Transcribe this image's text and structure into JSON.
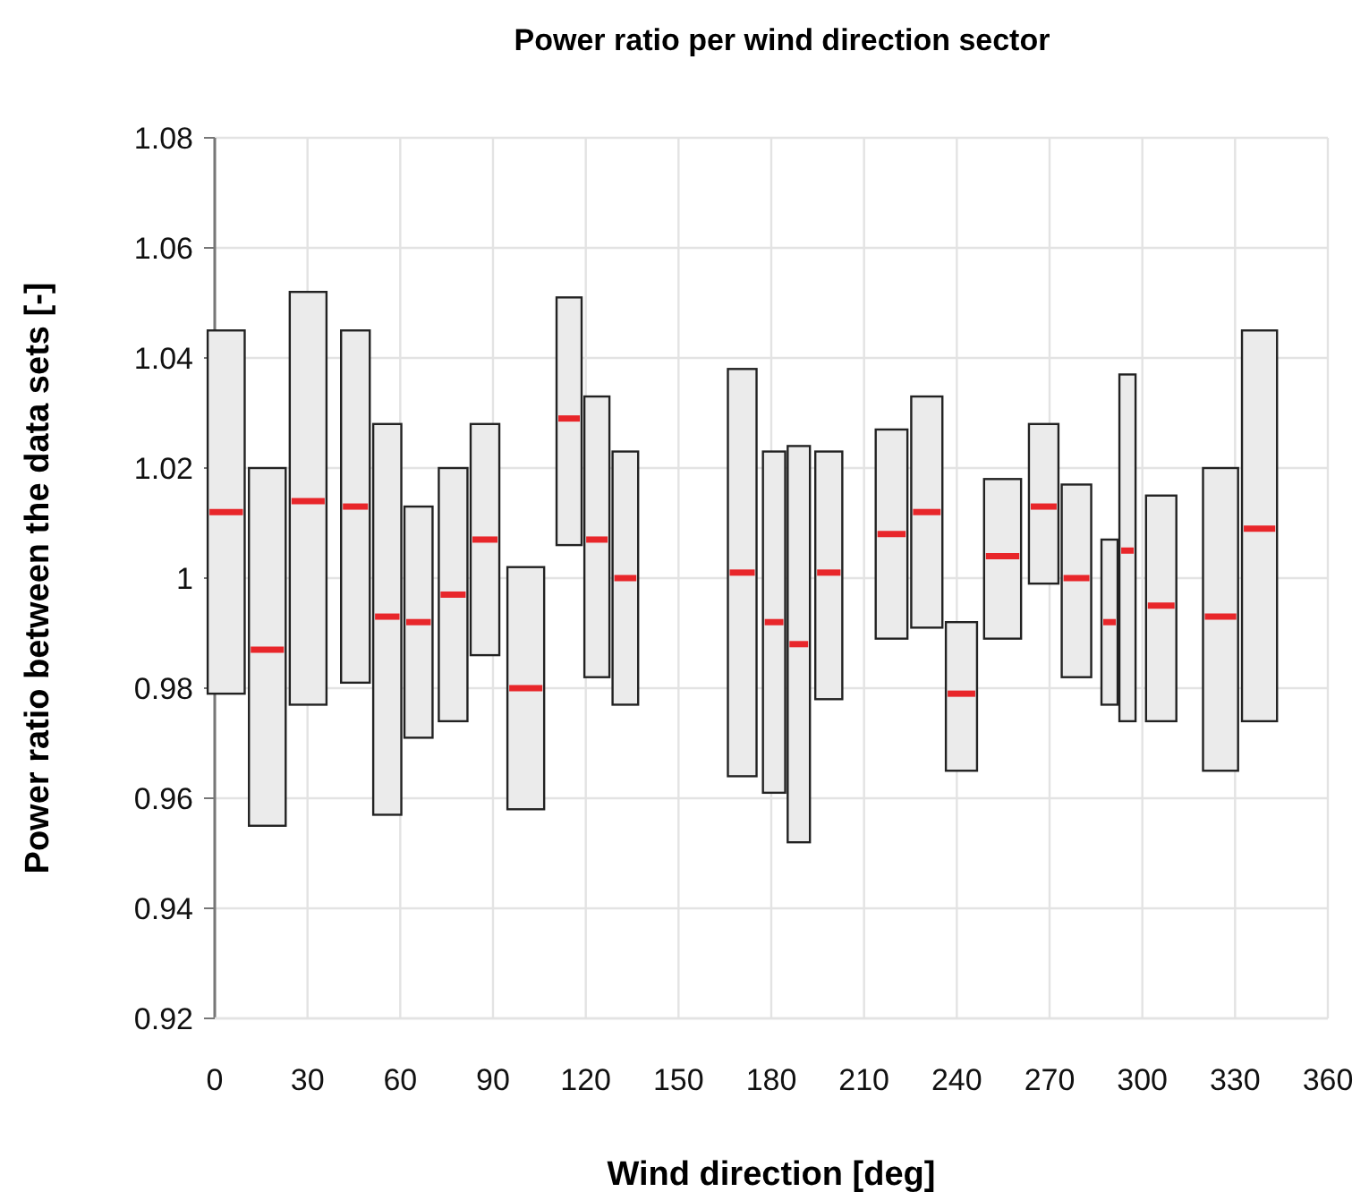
{
  "chart_data": {
    "type": "box",
    "title": "Power ratio per wind direction sector",
    "xlabel": "Wind direction [deg]",
    "ylabel": "Power ratio between the data sets [-]",
    "color": "#ebebeb",
    "x": [
      3.7,
      17,
      30.2,
      45.5,
      55.8,
      65.9,
      77.1,
      87.4,
      100.6,
      114.6,
      123.6,
      132.8,
      170.6,
      180.9,
      188.9,
      198.6,
      218.9,
      230.3,
      241.5,
      254.8,
      268.1,
      278.7,
      289.4,
      295.2,
      306.1,
      325.3,
      337.9
    ],
    "boxes": [
      {
        "low": 0.979,
        "q1": 0.979,
        "median": 1.012,
        "q3": 1.045,
        "high": 1.045
      },
      {
        "low": 0.955,
        "q1": 0.955,
        "median": 0.987,
        "q3": 1.02,
        "high": 1.02
      },
      {
        "low": 0.977,
        "q1": 0.977,
        "median": 1.014,
        "q3": 1.052,
        "high": 1.052
      },
      {
        "low": 0.981,
        "q1": 0.981,
        "median": 1.013,
        "q3": 1.045,
        "high": 1.045
      },
      {
        "low": 0.957,
        "q1": 0.957,
        "median": 0.993,
        "q3": 1.028,
        "high": 1.028
      },
      {
        "low": 0.971,
        "q1": 0.971,
        "median": 0.992,
        "q3": 1.013,
        "high": 1.013
      },
      {
        "low": 0.974,
        "q1": 0.974,
        "median": 0.997,
        "q3": 1.02,
        "high": 1.02
      },
      {
        "low": 0.986,
        "q1": 0.986,
        "median": 1.007,
        "q3": 1.028,
        "high": 1.028
      },
      {
        "low": 0.958,
        "q1": 0.958,
        "median": 0.98,
        "q3": 1.002,
        "high": 1.002
      },
      {
        "low": 1.006,
        "q1": 1.006,
        "median": 1.029,
        "q3": 1.051,
        "high": 1.051
      },
      {
        "low": 0.982,
        "q1": 0.982,
        "median": 1.007,
        "q3": 1.033,
        "high": 1.033
      },
      {
        "low": 0.977,
        "q1": 0.977,
        "median": 1.0,
        "q3": 1.023,
        "high": 1.023
      },
      {
        "low": 0.964,
        "q1": 0.964,
        "median": 1.001,
        "q3": 1.038,
        "high": 1.038
      },
      {
        "low": 0.961,
        "q1": 0.961,
        "median": 0.992,
        "q3": 1.023,
        "high": 1.023
      },
      {
        "low": 0.952,
        "q1": 0.952,
        "median": 0.988,
        "q3": 1.024,
        "high": 1.024
      },
      {
        "low": 0.978,
        "q1": 0.978,
        "median": 1.001,
        "q3": 1.023,
        "high": 1.023
      },
      {
        "low": 0.989,
        "q1": 0.989,
        "median": 1.008,
        "q3": 1.027,
        "high": 1.027
      },
      {
        "low": 0.991,
        "q1": 0.991,
        "median": 1.012,
        "q3": 1.033,
        "high": 1.033
      },
      {
        "low": 0.965,
        "q1": 0.965,
        "median": 0.979,
        "q3": 0.992,
        "high": 0.992
      },
      {
        "low": 0.989,
        "q1": 0.989,
        "median": 1.004,
        "q3": 1.018,
        "high": 1.018
      },
      {
        "low": 0.999,
        "q1": 0.999,
        "median": 1.013,
        "q3": 1.028,
        "high": 1.028
      },
      {
        "low": 0.982,
        "q1": 0.982,
        "median": 1.0,
        "q3": 1.017,
        "high": 1.017
      },
      {
        "low": 0.977,
        "q1": 0.977,
        "median": 0.992,
        "q3": 1.007,
        "high": 1.007
      },
      {
        "low": 0.974,
        "q1": 0.974,
        "median": 1.005,
        "q3": 1.037,
        "high": 1.037
      },
      {
        "low": 0.974,
        "q1": 0.974,
        "median": 0.995,
        "q3": 1.015,
        "high": 1.015
      },
      {
        "low": 0.965,
        "q1": 0.965,
        "median": 0.993,
        "q3": 1.02,
        "high": 1.02
      },
      {
        "low": 0.974,
        "q1": 0.974,
        "median": 1.009,
        "q3": 1.045,
        "high": 1.045
      }
    ],
    "xlim": [
      0,
      360
    ],
    "xticks": [
      0,
      30,
      60,
      90,
      120,
      150,
      180,
      210,
      240,
      270,
      300,
      330,
      360
    ],
    "ylim": [
      0.92,
      1.08
    ],
    "yticks": [
      0.92,
      0.94,
      0.96,
      0.98,
      1,
      1.02,
      1.04,
      1.06,
      1.08
    ],
    "grid": true
  }
}
